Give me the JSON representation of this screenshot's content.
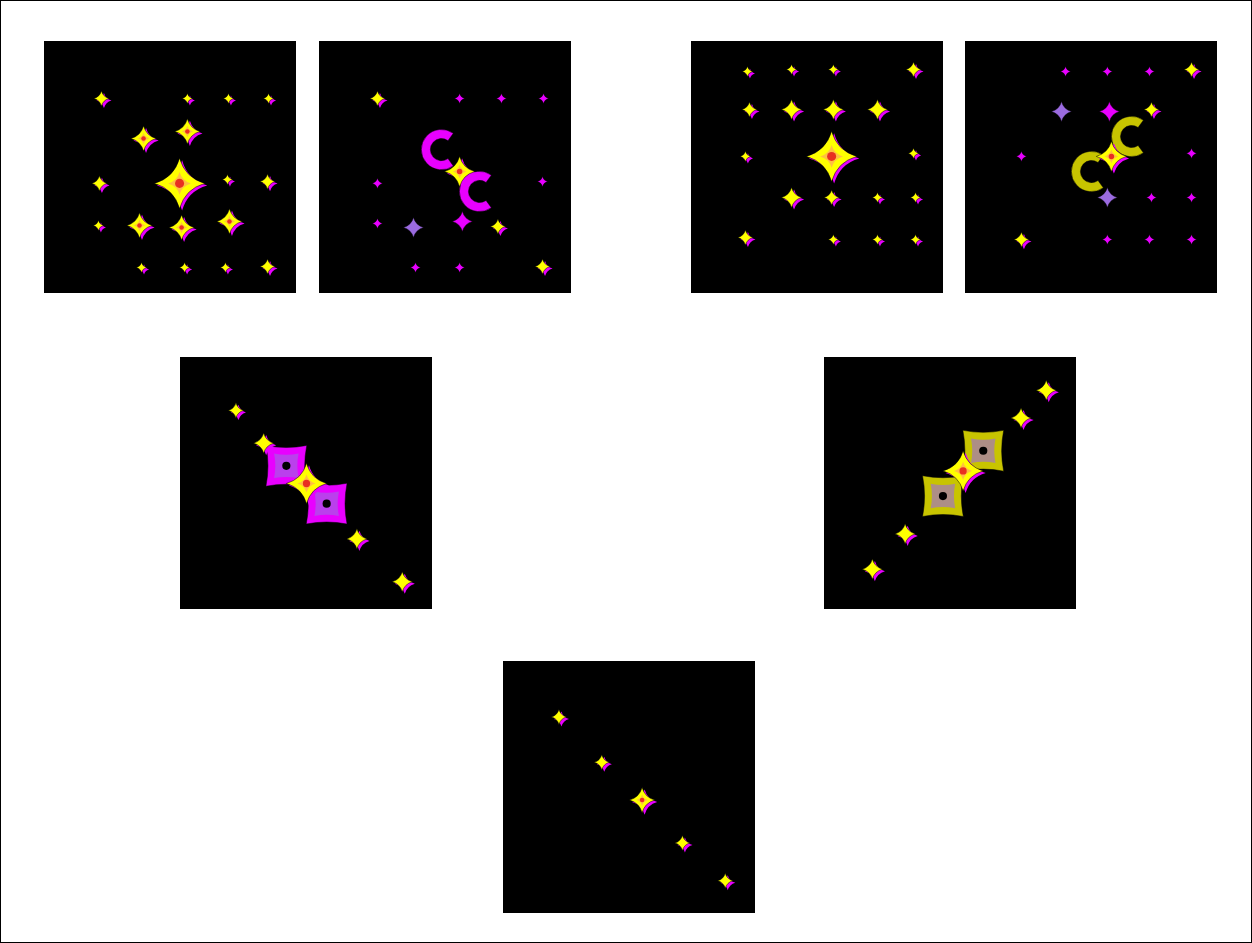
{
  "chart_data": [
    {
      "type": "scatter",
      "tick_labels": false,
      "xlim": [
        0,
        100
      ],
      "ylim": [
        100,
        0
      ],
      "xticks": [],
      "yticks": [],
      "series": [
        {
          "color": "#ffff00",
          "marker": "star",
          "x": [
            22.6,
            56.7,
            73,
            88.9,
            39.3,
            56.7,
            53.6,
            72.6,
            21.8,
            88.5,
            21.4,
            37.7,
            54.4,
            73.4,
            38.5,
            55.6,
            71.8,
            88.5
          ],
          "y": [
            22.6,
            22.6,
            22.6,
            22.6,
            38.5,
            35.7,
            56.3,
            54.8,
            56.3,
            55.6,
            73,
            73,
            73.8,
            71.4,
            89.7,
            89.7,
            89.7,
            89.3
          ],
          "sizes": [
            3,
            2,
            2,
            2,
            5,
            5,
            10,
            2,
            3,
            3,
            2,
            5,
            5,
            5,
            2,
            2,
            2,
            3
          ]
        }
      ]
    },
    {
      "type": "scatter",
      "tick_labels": false,
      "xlim": [
        0,
        100
      ],
      "ylim": [
        100,
        0
      ],
      "xticks": [],
      "yticks": [],
      "series": [
        {
          "color": "#e800ff",
          "marker": "crescent",
          "x": [
            48.4,
            63.5
          ],
          "y": [
            42.9,
            59.5
          ],
          "sizes": [
            8,
            8
          ]
        },
        {
          "color": "#e800ff",
          "marker": "star",
          "x": [
            55.6,
            72.2,
            88.9,
            23,
            88.5,
            56.7,
            23,
            38.1,
            55.6
          ],
          "y": [
            22.6,
            22.6,
            22.6,
            56.3,
            55.6,
            71.4,
            72.2,
            89.7,
            89.7
          ],
          "sizes": [
            2,
            2,
            2,
            2,
            2,
            4,
            2,
            2,
            2
          ]
        },
        {
          "color": "#9b6be0",
          "marker": "star",
          "x": [
            37.3
          ],
          "y": [
            73.8
          ],
          "sizes": [
            4
          ]
        },
        {
          "color": "#ffff00",
          "marker": "star",
          "x": [
            23,
            55.6,
            70.8,
            88.5
          ],
          "y": [
            22.6,
            51.6,
            73.4,
            89.3
          ],
          "sizes": [
            3,
            6,
            3,
            3
          ]
        }
      ]
    },
    {
      "type": "scatter",
      "tick_labels": false,
      "xlim": [
        0,
        100
      ],
      "ylim": [
        100,
        0
      ],
      "xticks": [],
      "yticks": [],
      "series": [
        {
          "color": "#ffff00",
          "marker": "star",
          "x": [
            22.2,
            39.7,
            56.3,
            88.1,
            23,
            39.7,
            56.3,
            73.8,
            55.6,
            88.1,
            21.4,
            39.7,
            55.6,
            73.8,
            88.9,
            21.4,
            56.3,
            73.8,
            88.9
          ],
          "y": [
            11.9,
            11.1,
            11.1,
            11.1,
            27,
            27,
            27,
            27,
            45.6,
            44.4,
            45.6,
            61.9,
            61.9,
            61.9,
            61.9,
            77.8,
            78.6,
            78.6,
            78.6
          ],
          "sizes": [
            2,
            2,
            2,
            3,
            3,
            4,
            4,
            4,
            10,
            2,
            2,
            4,
            3,
            2,
            2,
            3,
            2,
            2,
            2
          ]
        }
      ]
    },
    {
      "type": "scatter",
      "tick_labels": false,
      "xlim": [
        0,
        100
      ],
      "ylim": [
        100,
        0
      ],
      "xticks": [],
      "yticks": [],
      "series": [
        {
          "color": "#c8c400",
          "marker": "crescent",
          "x": [
            65.9,
            50
          ],
          "y": [
            37.7,
            51.6
          ],
          "sizes": [
            8,
            8
          ]
        },
        {
          "color": "#e800ff",
          "marker": "star",
          "x": [
            39.7,
            56.3,
            73,
            57.1,
            22.2,
            89.7,
            73.8,
            89.7,
            56.3,
            73,
            89.7
          ],
          "y": [
            11.9,
            11.9,
            11.9,
            27.8,
            45.6,
            44.4,
            61.9,
            61.9,
            78.6,
            78.6,
            78.6
          ],
          "sizes": [
            2,
            2,
            2,
            4,
            2,
            2,
            2,
            2,
            2,
            2,
            2
          ]
        },
        {
          "color": "#9b6be0",
          "marker": "star",
          "x": [
            38.1,
            56.3
          ],
          "y": [
            27.8,
            61.9
          ],
          "sizes": [
            4,
            4
          ]
        },
        {
          "color": "#ffff00",
          "marker": "star",
          "x": [
            89.7,
            73.8,
            57.9,
            22.2
          ],
          "y": [
            11.1,
            27,
            45.6,
            78.6
          ],
          "sizes": [
            3,
            3,
            6,
            3
          ]
        }
      ]
    },
    {
      "type": "scatter",
      "tick_labels": false,
      "xlim": [
        0,
        100
      ],
      "ylim": [
        100,
        0
      ],
      "xticks": [],
      "yticks": [],
      "series": [
        {
          "color": "#e800ff",
          "marker": "square",
          "x": [
            42,
            58
          ],
          "y": [
            43,
            58
          ],
          "sizes": [
            9,
            9
          ]
        },
        {
          "color": "#ffff00",
          "marker": "star",
          "x": [
            22,
            33,
            50,
            70,
            88
          ],
          "y": [
            21,
            34,
            50,
            72,
            89
          ],
          "sizes": [
            3,
            4,
            8,
            4,
            4
          ]
        }
      ]
    },
    {
      "type": "scatter",
      "tick_labels": false,
      "xlim": [
        0,
        100
      ],
      "ylim": [
        100,
        0
      ],
      "xticks": [],
      "yticks": [],
      "series": [
        {
          "color": "#c8c400",
          "marker": "square",
          "x": [
            63,
            47
          ],
          "y": [
            37,
            55
          ],
          "sizes": [
            9,
            9
          ]
        },
        {
          "color": "#ffff00",
          "marker": "star",
          "x": [
            88,
            78,
            55,
            32,
            19
          ],
          "y": [
            13,
            24,
            45,
            70,
            84
          ],
          "sizes": [
            4,
            4,
            8,
            4,
            4
          ]
        }
      ]
    },
    {
      "type": "scatter",
      "tick_labels": false,
      "xlim": [
        0,
        100
      ],
      "ylim": [
        100,
        0
      ],
      "xticks": [],
      "yticks": [],
      "series": [
        {
          "color": "#ffff00",
          "marker": "star",
          "x": [
            22,
            39,
            55,
            71,
            88
          ],
          "y": [
            22,
            40,
            55,
            72,
            87
          ],
          "sizes": [
            3,
            3,
            5,
            3,
            3
          ]
        }
      ]
    }
  ]
}
